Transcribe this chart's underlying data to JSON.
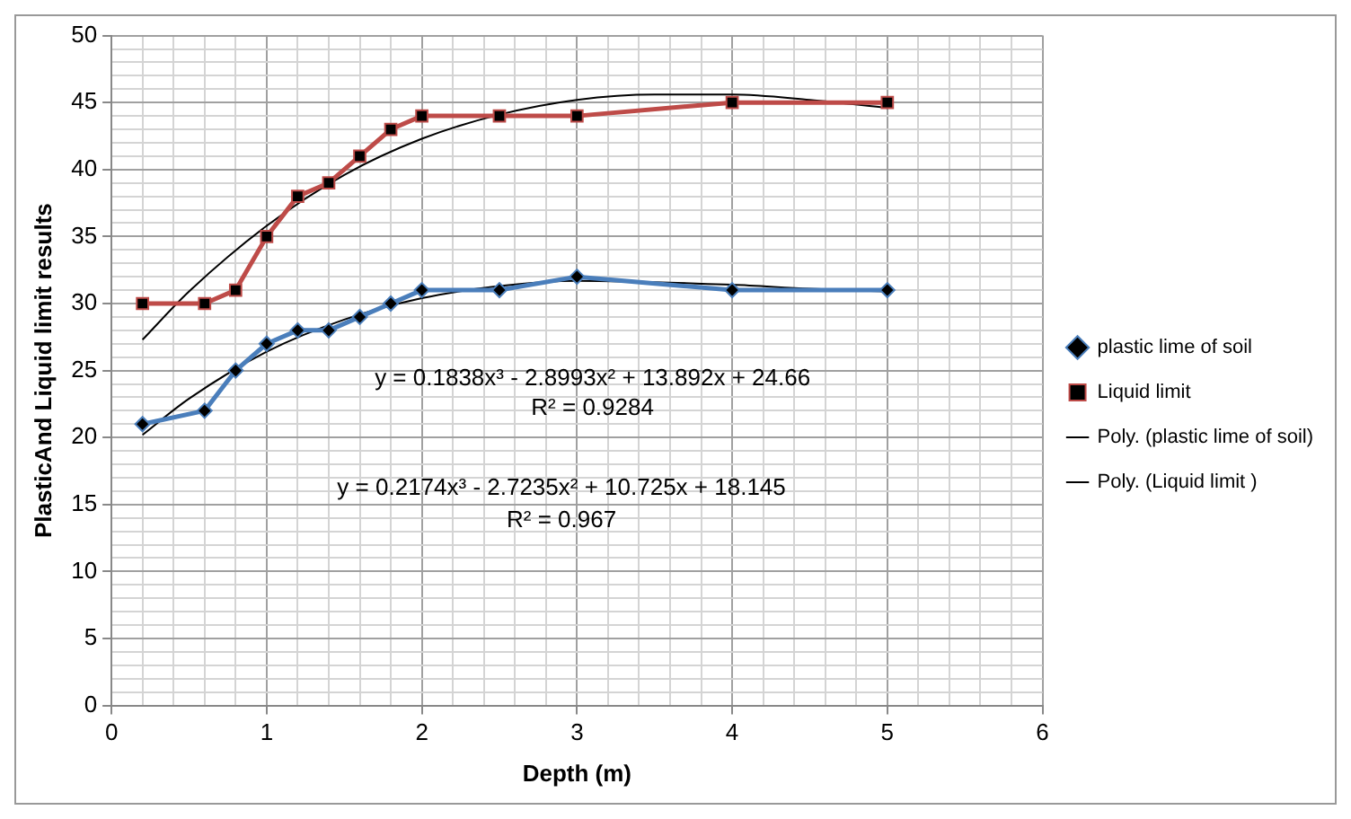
{
  "chart_data": {
    "type": "line",
    "xlabel": "Depth (m)",
    "ylabel": "PlasticAnd Liquid limit results",
    "xlim": [
      0,
      6
    ],
    "ylim": [
      0,
      50
    ],
    "xticks": [
      0,
      {
        "value": 0.2,
        "label": null
      },
      {
        "value": 0.4,
        "label": null
      },
      {
        "value": 0.6,
        "label": null
      },
      {
        "value": 0.8,
        "label": null
      },
      1,
      {
        "value": 1.2,
        "label": null
      },
      {
        "value": 1.4,
        "label": null
      },
      {
        "value": 1.6,
        "label": null
      },
      {
        "value": 1.8,
        "label": null
      },
      2,
      {
        "value": 2.2,
        "label": null
      },
      {
        "value": 2.4,
        "label": null
      },
      {
        "value": 2.6,
        "label": null
      },
      {
        "value": 2.8,
        "label": null
      },
      3,
      {
        "value": 3.2,
        "label": null
      },
      {
        "value": 3.4,
        "label": null
      },
      {
        "value": 3.6,
        "label": null
      },
      {
        "value": 3.8,
        "label": null
      },
      4,
      {
        "value": 4.2,
        "label": null
      },
      {
        "value": 4.4,
        "label": null
      },
      {
        "value": 4.6,
        "label": null
      },
      {
        "value": 4.8,
        "label": null
      },
      5,
      {
        "value": 5.2,
        "label": null
      },
      {
        "value": 5.4,
        "label": null
      },
      {
        "value": 5.6,
        "label": null
      },
      {
        "value": 5.8,
        "label": null
      },
      6
    ],
    "yticks": [
      0,
      {
        "value": 1,
        "label": null
      },
      {
        "value": 2,
        "label": null
      },
      {
        "value": 3,
        "label": null
      },
      {
        "value": 4,
        "label": null
      },
      5,
      {
        "value": 6,
        "label": null
      },
      {
        "value": 7,
        "label": null
      },
      {
        "value": 8,
        "label": null
      },
      {
        "value": 9,
        "label": null
      },
      10,
      {
        "value": 11,
        "label": null
      },
      {
        "value": 12,
        "label": null
      },
      {
        "value": 13,
        "label": null
      },
      {
        "value": 14,
        "label": null
      },
      15,
      {
        "value": 16,
        "label": null
      },
      {
        "value": 17,
        "label": null
      },
      {
        "value": 18,
        "label": null
      },
      {
        "value": 19,
        "label": null
      },
      20,
      {
        "value": 21,
        "label": null
      },
      {
        "value": 22,
        "label": null
      },
      {
        "value": 23,
        "label": null
      },
      {
        "value": 24,
        "label": null
      },
      25,
      {
        "value": 26,
        "label": null
      },
      {
        "value": 27,
        "label": null
      },
      {
        "value": 28,
        "label": null
      },
      {
        "value": 29,
        "label": null
      },
      30,
      {
        "value": 31,
        "label": null
      },
      {
        "value": 32,
        "label": null
      },
      {
        "value": 33,
        "label": null
      },
      {
        "value": 34,
        "label": null
      },
      35,
      {
        "value": 36,
        "label": null
      },
      {
        "value": 37,
        "label": null
      },
      {
        "value": 38,
        "label": null
      },
      {
        "value": 39,
        "label": null
      },
      40,
      {
        "value": 41,
        "label": null
      },
      {
        "value": 42,
        "label": null
      },
      {
        "value": 43,
        "label": null
      },
      {
        "value": 44,
        "label": null
      },
      45,
      {
        "value": 46,
        "label": null
      },
      {
        "value": 47,
        "label": null
      },
      {
        "value": 48,
        "label": null
      },
      {
        "value": 49,
        "label": null
      },
      50
    ],
    "grid": true,
    "legend": "right",
    "series": [
      {
        "name": "plastic lime of soil",
        "color": "#4a7ebb",
        "marker": "diamond",
        "x": [
          0.2,
          0.6,
          0.8,
          1,
          1.2,
          1.4,
          1.6,
          1.8,
          2,
          2.5,
          3,
          4,
          5
        ],
        "values": [
          21,
          22,
          25,
          27,
          28,
          28,
          29,
          30,
          31,
          31,
          32,
          31,
          31
        ]
      },
      {
        "name": "Liquid limit",
        "color": "#be4b48",
        "marker": "square",
        "x": [
          0.2,
          0.6,
          0.8,
          1,
          1.2,
          1.4,
          1.6,
          1.8,
          2,
          2.5,
          3,
          4,
          5
        ],
        "values": [
          30,
          30,
          31,
          35,
          38,
          39,
          41,
          43,
          44,
          44,
          44,
          45,
          45
        ]
      },
      {
        "name": "Poly. (plastic lime of soil)",
        "color": "#000000",
        "marker": "none",
        "x": [
          0.2,
          0.5,
          1,
          1.5,
          2,
          2.5,
          3,
          4,
          4.5,
          5
        ],
        "values": [
          20.2,
          22.9,
          26.4,
          28.8,
          30.4,
          31.3,
          31.7,
          31.4,
          31.1,
          30.9
        ]
      },
      {
        "name": "Poly. (Liquid limit )",
        "color": "#000000",
        "marker": "none",
        "x": [
          0.2,
          0.5,
          1,
          1.5,
          2,
          2.5,
          3,
          3.5,
          4,
          4.5,
          5
        ],
        "values": [
          27.3,
          30.9,
          35.8,
          39.6,
          42.3,
          44.1,
          45.2,
          45.6,
          45.6,
          45.2,
          44.6
        ]
      }
    ],
    "annotations": [
      "y = 0.1838x³ - 2.8993x² + 13.892x + 24.66",
      "R² = 0.9284",
      "y = 0.2174x³ - 2.7235x² + 10.725x + 18.145",
      "R² = 0.967"
    ]
  }
}
